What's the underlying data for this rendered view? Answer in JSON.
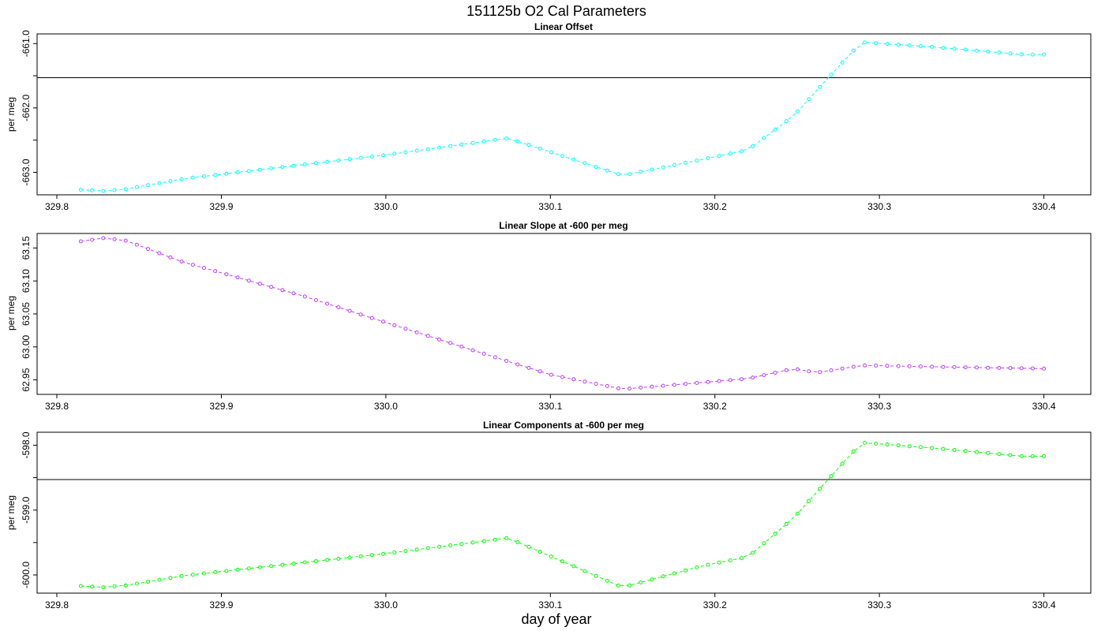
{
  "title": "151125b   O2 Cal Parameters",
  "xlabel": "day of year",
  "chart_data": [
    {
      "type": "line",
      "title": "Linear Offset",
      "ylabel": "per meg",
      "color": "#00ffff",
      "xlim": [
        329.788,
        330.4285
      ],
      "ylim": [
        -663.35,
        -660.85
      ],
      "xticks": [
        329.8,
        329.9,
        330.0,
        330.1,
        330.2,
        330.3,
        330.4
      ],
      "xtick_labels": [
        "329.8",
        "329.9",
        "330.0",
        "330.1",
        "330.2",
        "330.3",
        "330.4"
      ],
      "yticks": [
        -663.0,
        -662.0,
        -661.0
      ],
      "ytick_labels": [
        "-663.0",
        "-662.0",
        "-661.0"
      ],
      "yminor_ticks": [
        -662.5,
        -661.5
      ],
      "hline": -661.53,
      "knots": [
        [
          329.8146,
          -663.27
        ],
        [
          329.8285,
          -663.29
        ],
        [
          329.8424,
          -663.26
        ],
        [
          329.8771,
          -663.1
        ],
        [
          330.0,
          -662.73
        ],
        [
          330.0743,
          -662.47
        ],
        [
          330.1438,
          -663.05
        ],
        [
          330.1924,
          -662.8
        ],
        [
          330.2202,
          -662.65
        ],
        [
          330.2479,
          -662.12
        ],
        [
          330.2826,
          -661.15
        ],
        [
          330.2896,
          -660.98
        ],
        [
          330.3313,
          -661.05
        ],
        [
          330.3868,
          -661.17
        ],
        [
          330.4,
          -661.17
        ]
      ]
    },
    {
      "type": "line",
      "title": "Linear Slope at -600 per meg",
      "ylabel": "per meg",
      "color": "#bf3eff",
      "xlim": [
        329.788,
        330.4285
      ],
      "ylim": [
        62.928,
        63.172
      ],
      "xticks": [
        329.8,
        329.9,
        330.0,
        330.1,
        330.2,
        330.3,
        330.4
      ],
      "xtick_labels": [
        "329.8",
        "329.9",
        "330.0",
        "330.1",
        "330.2",
        "330.3",
        "330.4"
      ],
      "yticks": [
        62.95,
        63.0,
        63.05,
        63.1,
        63.15
      ],
      "ytick_labels": [
        "62.95",
        "63.00",
        "63.05",
        "63.10",
        "63.15"
      ],
      "yminor_ticks": [],
      "hline": null,
      "knots": [
        [
          329.8146,
          63.16
        ],
        [
          329.8285,
          63.165
        ],
        [
          329.8424,
          63.161
        ],
        [
          329.875,
          63.13
        ],
        [
          329.95,
          63.077
        ],
        [
          330.0,
          63.037
        ],
        [
          330.0743,
          62.978
        ],
        [
          330.1,
          62.958
        ],
        [
          330.1438,
          62.936
        ],
        [
          330.1924,
          62.946
        ],
        [
          330.2202,
          62.952
        ],
        [
          330.2479,
          62.967
        ],
        [
          330.2618,
          62.961
        ],
        [
          330.2896,
          62.972
        ],
        [
          330.3313,
          62.97
        ],
        [
          330.4,
          62.967
        ]
      ]
    },
    {
      "type": "line",
      "title": "Linear Components at -600 per meg",
      "ylabel": "per meg",
      "color": "#00ff00",
      "xlim": [
        329.788,
        330.4285
      ],
      "ylim": [
        -600.28,
        -597.8
      ],
      "xticks": [
        329.8,
        329.9,
        330.0,
        330.1,
        330.2,
        330.3,
        330.4
      ],
      "xtick_labels": [
        "329.8",
        "329.9",
        "330.0",
        "330.1",
        "330.2",
        "330.3",
        "330.4"
      ],
      "yticks": [
        -600.0,
        -599.0,
        -598.0
      ],
      "ytick_labels": [
        "-600.0",
        "-599.0",
        "-598.0"
      ],
      "yminor_ticks": [
        -599.5,
        -598.5
      ],
      "hline": -598.53,
      "knots": [
        [
          329.8146,
          -600.17
        ],
        [
          329.8285,
          -600.19
        ],
        [
          329.8424,
          -600.16
        ],
        [
          329.8771,
          -600.01
        ],
        [
          330.0,
          -599.67
        ],
        [
          330.0743,
          -599.43
        ],
        [
          330.1438,
          -600.19
        ],
        [
          330.1924,
          -599.86
        ],
        [
          330.2202,
          -599.72
        ],
        [
          330.2479,
          -599.12
        ],
        [
          330.2826,
          -598.14
        ],
        [
          330.2896,
          -597.96
        ],
        [
          330.3313,
          -598.04
        ],
        [
          330.3868,
          -598.17
        ],
        [
          330.4,
          -598.17
        ]
      ]
    }
  ]
}
